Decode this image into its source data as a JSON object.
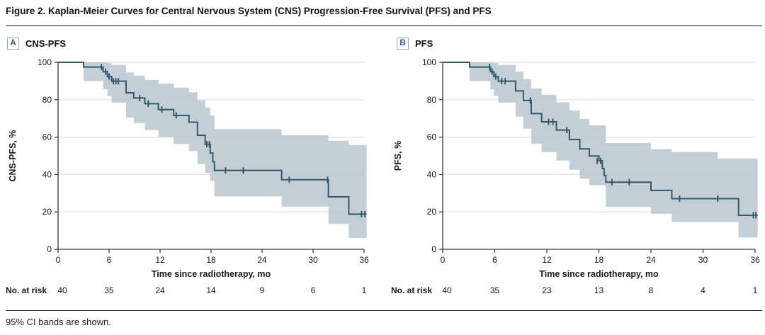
{
  "figure": {
    "title": "Figure 2. Kaplan-Meier Curves for Central Nervous System (CNS) Progression-Free Survival (PFS) and PFS",
    "footnote": "95% CI bands are shown."
  },
  "colors": {
    "curve": "#325a6d",
    "band_fill": "#b9c6ce",
    "grid": "#e0e0e0",
    "axis": "#3a3a3a",
    "text": "#1a1a1a",
    "panel_letter": "#275c8f"
  },
  "chart_data": [
    {
      "type": "line",
      "step_style": "kaplan-meier",
      "panel_letter": "A",
      "panel_title": "CNS-PFS",
      "xlabel": "Time since radiotherapy, mo",
      "ylabel": "CNS-PFS, %",
      "xlim": [
        0,
        36
      ],
      "ylim": [
        0,
        100
      ],
      "xticks": [
        0,
        6,
        12,
        18,
        24,
        30,
        36
      ],
      "yticks": [
        0,
        20,
        40,
        60,
        80,
        100
      ],
      "grid": "horizontal",
      "legend": "none",
      "series": [
        {
          "name": "CNS-PFS",
          "steps": [
            [
              0,
              100
            ],
            [
              3,
              97.5
            ],
            [
              5.3,
              95
            ],
            [
              5.8,
              92.4
            ],
            [
              6.3,
              89.9
            ],
            [
              8,
              83.7
            ],
            [
              8.9,
              80.9
            ],
            [
              10.2,
              77.9
            ],
            [
              11.8,
              74.7
            ],
            [
              13.6,
              71.6
            ],
            [
              15.4,
              68
            ],
            [
              16.4,
              61
            ],
            [
              17.3,
              56.2
            ],
            [
              17.9,
              51.5
            ],
            [
              18.2,
              46.8
            ],
            [
              18.4,
              42.2
            ],
            [
              26.3,
              37.2
            ],
            [
              31.8,
              28.1
            ],
            [
              34.2,
              18.8
            ],
            [
              36.3,
              18.8
            ]
          ]
        }
      ],
      "censor_marks": [
        [
          5.1,
          97.5
        ],
        [
          5.6,
          95
        ],
        [
          6.0,
          92.4
        ],
        [
          6.5,
          89.9
        ],
        [
          6.8,
          89.9
        ],
        [
          7.1,
          89.9
        ],
        [
          9.6,
          80.9
        ],
        [
          10.6,
          77.9
        ],
        [
          12.2,
          74.7
        ],
        [
          13.9,
          71.6
        ],
        [
          17.5,
          56.2
        ],
        [
          17.8,
          56.2
        ],
        [
          19.7,
          42.2
        ],
        [
          21.8,
          42.2
        ],
        [
          27.2,
          37.2
        ],
        [
          31.7,
          37.2
        ],
        [
          35.7,
          18.8
        ],
        [
          36.1,
          18.8
        ]
      ],
      "ci_band": [
        [
          3,
          90,
          100
        ],
        [
          5.3,
          85.5,
          100
        ],
        [
          5.8,
          82,
          99.6
        ],
        [
          6.3,
          78.5,
          98.6
        ],
        [
          8,
          70.5,
          94.6
        ],
        [
          8.9,
          67.5,
          92.8
        ],
        [
          10.2,
          63.8,
          90.6
        ],
        [
          11.8,
          60,
          88.6
        ],
        [
          13.6,
          56.4,
          86.4
        ],
        [
          15.4,
          52.6,
          84
        ],
        [
          16.4,
          45.6,
          79.6
        ],
        [
          17.3,
          40.8,
          75.8
        ],
        [
          17.9,
          36.5,
          71.5
        ],
        [
          18.4,
          28.3,
          64.3
        ],
        [
          26.3,
          22.8,
          61
        ],
        [
          31.8,
          13.6,
          58
        ],
        [
          34.2,
          6,
          55.8
        ],
        [
          36.3,
          6,
          55.8
        ]
      ],
      "at_risk": {
        "label": "No. at risk",
        "times": [
          0,
          6,
          12,
          18,
          24,
          30,
          36
        ],
        "counts": [
          40,
          35,
          24,
          14,
          9,
          6,
          1
        ]
      }
    },
    {
      "type": "line",
      "step_style": "kaplan-meier",
      "panel_letter": "B",
      "panel_title": "PFS",
      "xlabel": "Time since radiotherapy, mo",
      "ylabel": "PFS, %",
      "xlim": [
        0,
        36
      ],
      "ylim": [
        0,
        100
      ],
      "xticks": [
        0,
        6,
        12,
        18,
        24,
        30,
        36
      ],
      "yticks": [
        0,
        20,
        40,
        60,
        80,
        100
      ],
      "grid": "horizontal",
      "legend": "none",
      "series": [
        {
          "name": "PFS",
          "steps": [
            [
              0,
              100
            ],
            [
              3.1,
              97.5
            ],
            [
              5.5,
              95
            ],
            [
              5.9,
              92.4
            ],
            [
              6.4,
              89.9
            ],
            [
              8.4,
              84.7
            ],
            [
              9.3,
              79.6
            ],
            [
              10.2,
              72.6
            ],
            [
              11.4,
              68.2
            ],
            [
              13.1,
              63.8
            ],
            [
              14.6,
              58.7
            ],
            [
              15.8,
              53.7
            ],
            [
              16.9,
              49.9
            ],
            [
              18,
              47.3
            ],
            [
              18.4,
              43.2
            ],
            [
              18.6,
              39.5
            ],
            [
              18.8,
              35.9
            ],
            [
              24,
              31.5
            ],
            [
              26.4,
              27.1
            ],
            [
              34.1,
              18.2
            ],
            [
              36.3,
              18.2
            ]
          ]
        }
      ],
      "censor_marks": [
        [
          5.4,
          97.5
        ],
        [
          5.7,
          95
        ],
        [
          6.1,
          92.4
        ],
        [
          6.8,
          89.9
        ],
        [
          7.2,
          89.9
        ],
        [
          10.1,
          79.6
        ],
        [
          12.2,
          68.2
        ],
        [
          12.7,
          68.2
        ],
        [
          14.3,
          63.8
        ],
        [
          17.8,
          47.3
        ],
        [
          18.2,
          47.3
        ],
        [
          19.5,
          35.9
        ],
        [
          21.5,
          35.9
        ],
        [
          27.3,
          27.1
        ],
        [
          31.7,
          27.1
        ],
        [
          35.8,
          18.2
        ],
        [
          36.1,
          18.2
        ]
      ],
      "ci_band": [
        [
          3.1,
          90,
          100
        ],
        [
          5.5,
          85.5,
          100
        ],
        [
          5.9,
          82,
          99.6
        ],
        [
          6.4,
          78.5,
          98.6
        ],
        [
          8.4,
          71,
          95
        ],
        [
          9.3,
          64.5,
          91
        ],
        [
          10.2,
          56.5,
          86
        ],
        [
          11.4,
          52,
          82.6
        ],
        [
          13.1,
          47.5,
          78.6
        ],
        [
          14.6,
          42.5,
          74.2
        ],
        [
          15.8,
          37.8,
          69.8
        ],
        [
          16.9,
          34.3,
          66.3
        ],
        [
          18.8,
          22.7,
          56.8
        ],
        [
          24,
          19,
          53.5
        ],
        [
          26.4,
          14.6,
          52
        ],
        [
          31.7,
          14.6,
          48.6
        ],
        [
          34.1,
          6.3,
          48.6
        ],
        [
          36.3,
          6.3,
          48.6
        ]
      ],
      "at_risk": {
        "label": "No. at risk",
        "times": [
          0,
          6,
          12,
          18,
          24,
          30,
          36
        ],
        "counts": [
          40,
          35,
          23,
          13,
          8,
          4,
          1
        ]
      }
    }
  ]
}
